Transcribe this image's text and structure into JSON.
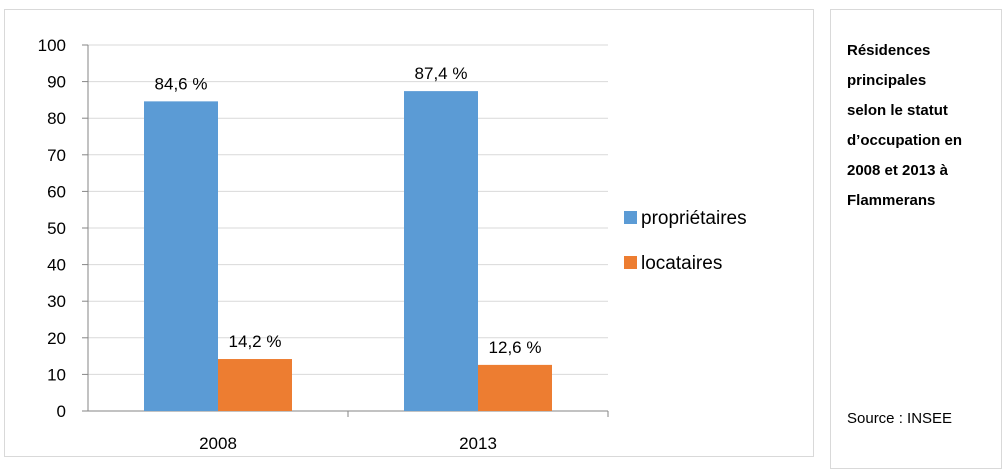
{
  "chart_data": {
    "type": "bar",
    "categories": [
      "2008",
      "2013"
    ],
    "series": [
      {
        "name": "propriétaires",
        "values": [
          84.6,
          87.4
        ],
        "labels": [
          "84,6 %",
          "87,4 %"
        ],
        "color": "#5b9bd5"
      },
      {
        "name": "locataires",
        "values": [
          14.2,
          12.6
        ],
        "labels": [
          "14,2 %",
          "12,6 %"
        ],
        "color": "#ed7d31"
      }
    ],
    "ylim": [
      0,
      100
    ],
    "yticks": [
      0,
      10,
      20,
      30,
      40,
      50,
      60,
      70,
      80,
      90,
      100
    ],
    "grid": true,
    "legend_position": "right"
  },
  "caption": {
    "lines": [
      "Résidences",
      "principales",
      "selon le statut",
      "d’occupation en",
      "2008 et 2013 à",
      "Flammerans"
    ]
  },
  "source": "Source : INSEE",
  "colors": {
    "gridline": "#d9d9d9",
    "axis": "#868686"
  }
}
